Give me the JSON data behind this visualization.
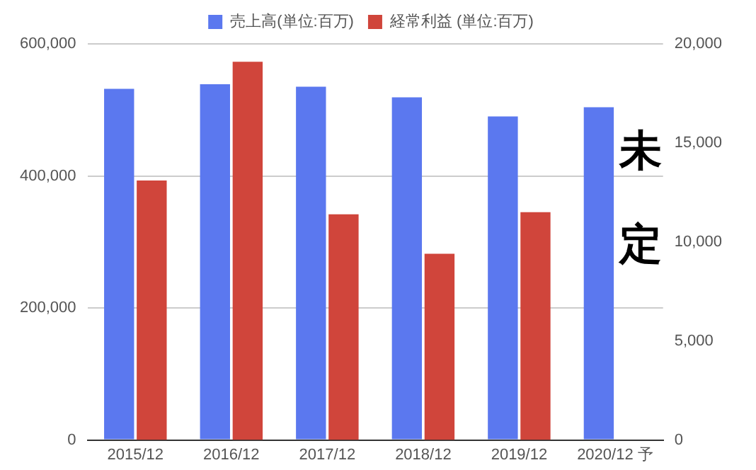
{
  "chart_data": {
    "type": "bar",
    "categories": [
      "2015/12",
      "2016/12",
      "2017/12",
      "2018/12",
      "2019/12",
      "2020/12 予"
    ],
    "series": [
      {
        "name": "売上高(単位:百万)",
        "color": "#5b78ef",
        "values": [
          532000,
          539000,
          535000,
          519000,
          490000,
          504000
        ]
      },
      {
        "name": "経常利益 (単位:百万)",
        "color": "#d0453b",
        "axis": "y2",
        "values": [
          13100,
          19100,
          11400,
          9400,
          11500,
          null
        ]
      }
    ],
    "ylim": [
      0,
      600000
    ],
    "yticks": [
      {
        "value": 0,
        "label": "0"
      },
      {
        "value": 200000,
        "label": "200,000"
      },
      {
        "value": 400000,
        "label": "400,000"
      },
      {
        "value": 600000,
        "label": "600,000"
      }
    ],
    "y2lim": [
      0,
      20000
    ],
    "y2ticks": [
      {
        "value": 0,
        "label": "0"
      },
      {
        "value": 5000,
        "label": "5,000"
      },
      {
        "value": 10000,
        "label": "10,000"
      },
      {
        "value": 15000,
        "label": "15,000"
      },
      {
        "value": 20000,
        "label": "20,000"
      }
    ],
    "grid": "y",
    "legend": "top",
    "annotations": [
      "未定"
    ]
  }
}
